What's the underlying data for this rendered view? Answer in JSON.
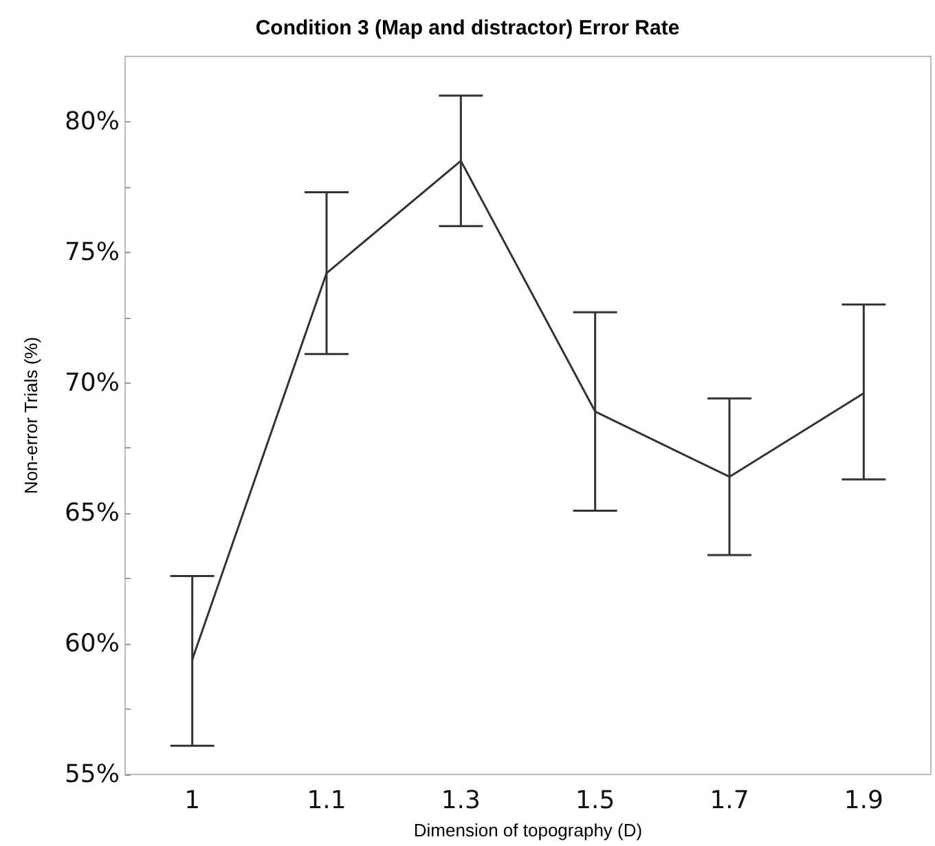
{
  "chart_data": {
    "type": "line",
    "title": "Condition 3 (Map and distractor) Error Rate",
    "xlabel": "Dimension of topography (D)",
    "ylabel": "Non-error Trials (%)",
    "categories": [
      "1",
      "1.1",
      "1.3",
      "1.5",
      "1.7",
      "1.9"
    ],
    "series": [
      {
        "color": "#333333",
        "values": [
          59.4,
          74.2,
          78.5,
          68.9,
          66.4,
          69.6
        ],
        "errors": [
          [
            56.1,
            62.6
          ],
          [
            71.1,
            77.3
          ],
          [
            76.0,
            81.0
          ],
          [
            65.1,
            72.7
          ],
          [
            63.4,
            69.4
          ],
          [
            66.3,
            73.0
          ]
        ]
      }
    ],
    "ylim": [
      55,
      82.5
    ],
    "yticks": [
      {
        "value": 55,
        "label": "55%"
      },
      {
        "value": 57.5,
        "label": null
      },
      {
        "value": 60,
        "label": "60%"
      },
      {
        "value": 62.5,
        "label": null
      },
      {
        "value": 65,
        "label": "65%"
      },
      {
        "value": 67.5,
        "label": null
      },
      {
        "value": 70,
        "label": "70%"
      },
      {
        "value": 72.5,
        "label": null
      },
      {
        "value": 75,
        "label": "75%"
      },
      {
        "value": 77.5,
        "label": null
      },
      {
        "value": 80,
        "label": "80%"
      }
    ],
    "marker": "none",
    "line_style": "solid"
  }
}
